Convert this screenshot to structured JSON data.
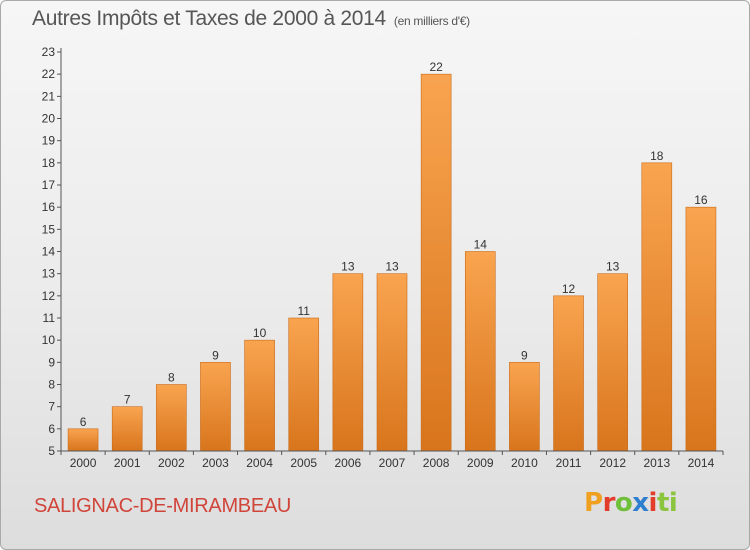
{
  "title": "Autres Impôts et Taxes de 2000 à 2014",
  "unit_note": "(en milliers d'€)",
  "commune": "SALIGNAC-DE-MIRAMBEAU",
  "logo": {
    "text": "Proxiti",
    "letters": [
      "P",
      "r",
      "o",
      "x",
      "i",
      "ti"
    ]
  },
  "colors": {
    "bar_light": "#f9a450",
    "bar_dark": "#d8751c",
    "axis": "#555555",
    "text": "#333333"
  },
  "chart_data": {
    "type": "bar",
    "categories": [
      "2000",
      "2001",
      "2002",
      "2003",
      "2004",
      "2005",
      "2006",
      "2007",
      "2008",
      "2009",
      "2010",
      "2011",
      "2012",
      "2013",
      "2014"
    ],
    "values": [
      6,
      7,
      8,
      9,
      10,
      11,
      13,
      13,
      22,
      14,
      9,
      12,
      13,
      18,
      16
    ],
    "data_labels": [
      "6",
      "7",
      "8",
      "9",
      "10",
      "11",
      "13",
      "13",
      "22",
      "14",
      "9",
      "12",
      "13",
      "18",
      "16"
    ],
    "yticks": [
      "5",
      "6",
      "7",
      "8",
      "9",
      "10",
      "11",
      "12",
      "13",
      "14",
      "15",
      "16",
      "17",
      "18",
      "19",
      "20",
      "21",
      "22",
      "23"
    ],
    "ylim": [
      5,
      23
    ],
    "grid": false,
    "xlabel": "",
    "ylabel": ""
  }
}
